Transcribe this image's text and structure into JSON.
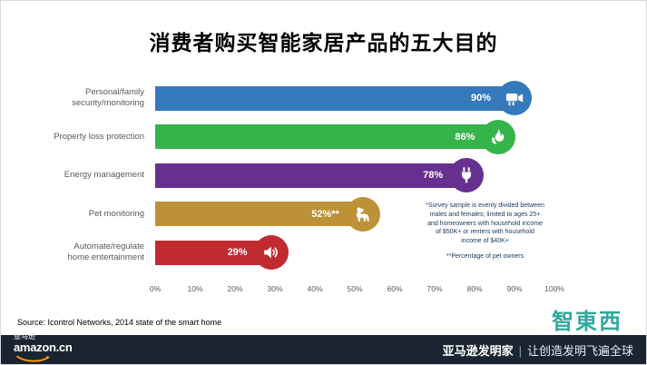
{
  "page": {
    "title": "消费者购买智能家居产品的五大目的"
  },
  "chart_data": {
    "type": "bar",
    "orientation": "horizontal",
    "title": "消费者购买智能家居产品的五大目的",
    "categories": [
      "Personal/family security/monitoring",
      "Property loss protection",
      "Energy management",
      "Pet monitoring",
      "Automate/regulate home entertainment"
    ],
    "values": [
      90,
      86,
      78,
      52,
      29
    ],
    "value_labels": [
      "90%",
      "86%",
      "78%",
      "52%**",
      "29%"
    ],
    "colors": [
      "#3579bd",
      "#35b44a",
      "#67308f",
      "#bd9136",
      "#c02b30"
    ],
    "icons": [
      "security-camera-icon",
      "flame-icon",
      "power-plug-icon",
      "dog-icon",
      "speaker-icon"
    ],
    "x_ticks": [
      "0%",
      "10%",
      "20%",
      "30%",
      "40%",
      "50%",
      "60%",
      "70%",
      "80%",
      "90%",
      "100%"
    ],
    "xlim": [
      0,
      100
    ],
    "grid": false,
    "legend": false,
    "annotations": [
      "*Survey sample is evenly divided between males and females; limited to ages 25+ and homeowners with household income of $50K+ or renters with household income of $40K+",
      "**Percentage of pet owners"
    ]
  },
  "source": "Source: Icontrol Networks, 2014 state of the smart home",
  "watermark": "智東西",
  "footer": {
    "brand_cn": "亚马逊",
    "brand_domain": "amazon.cn",
    "campaign_bold": "亚马逊发明家",
    "separator": "|",
    "campaign_text": "让创造发明飞遍全球"
  }
}
